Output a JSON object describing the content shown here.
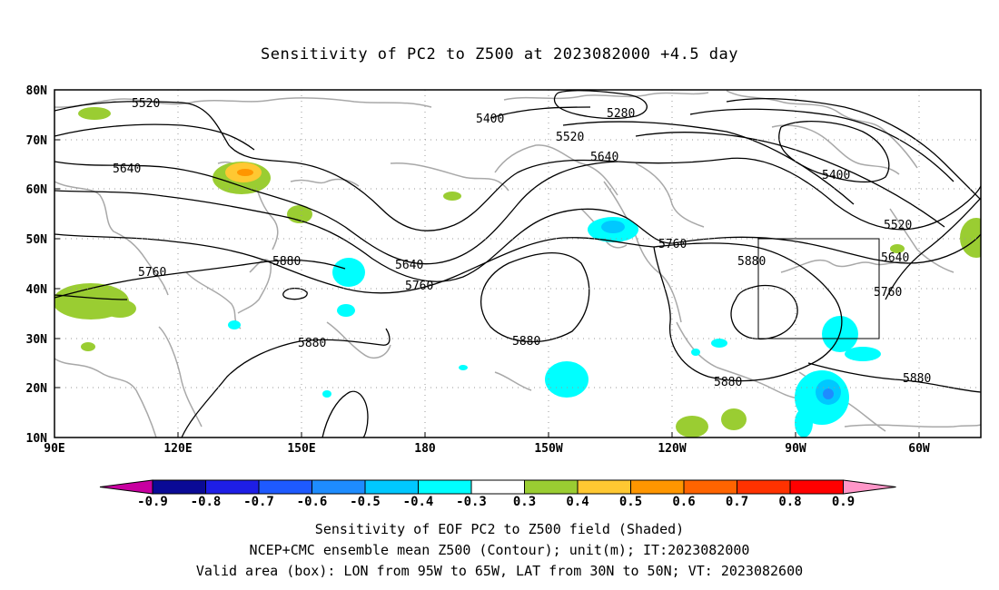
{
  "title": "Sensitivity of PC2 to Z500 at 2023082000 +4.5 day",
  "axes": {
    "lat_labels": [
      "80N",
      "70N",
      "60N",
      "50N",
      "40N",
      "30N",
      "20N",
      "10N"
    ],
    "lon_labels": [
      "90E",
      "120E",
      "150E",
      "180",
      "150W",
      "120W",
      "90W",
      "60W"
    ]
  },
  "contour_labels": {
    "c5520a": "5520",
    "c5400a": "5400",
    "c5280": "5280",
    "c5520b": "5520",
    "c5640a": "5640",
    "c5640b": "5640",
    "c5400b": "5400",
    "c5520c": "5520",
    "c5640c": "5640",
    "c5760a": "5760",
    "c5880a": "5880",
    "c5640d": "5640",
    "c5760b": "5760",
    "c5760c": "5760",
    "c5880b": "5880",
    "c5760d": "5760",
    "c5880c": "5880",
    "c5880d": "5880",
    "c5880e": "5880",
    "c5880f": "5880"
  },
  "colorbar": {
    "labels": [
      "-0.9",
      "-0.8",
      "-0.7",
      "-0.6",
      "-0.5",
      "-0.4",
      "-0.3",
      "0.3",
      "0.4",
      "0.5",
      "0.6",
      "0.7",
      "0.8",
      "0.9"
    ],
    "colors": [
      "#0a0a96",
      "#1e1ee6",
      "#1e5aff",
      "#1e8cff",
      "#00c8ff",
      "#00ffff",
      "#ffffff",
      "#9acd32",
      "#ffc832",
      "#ff9600",
      "#ff6400",
      "#ff3200",
      "#ff0000"
    ],
    "low_color": "#c800a0",
    "high_color": "#ff96c8"
  },
  "shading_colors": {
    "green": "#9acd32",
    "yellow": "#ffc832",
    "orange": "#ff9600",
    "cyan": "#00ffff",
    "lightblue": "#00c8ff",
    "blue": "#1e8cff"
  },
  "captions": {
    "line1": "Sensitivity of EOF PC2 to Z500 field (Shaded)",
    "line2": "NCEP+CMC ensemble mean Z500 (Contour); unit(m); IT:2023082000",
    "line3": "Valid area (box): LON from 95W to 65W, LAT from 30N to 50N; VT: 2023082600"
  }
}
